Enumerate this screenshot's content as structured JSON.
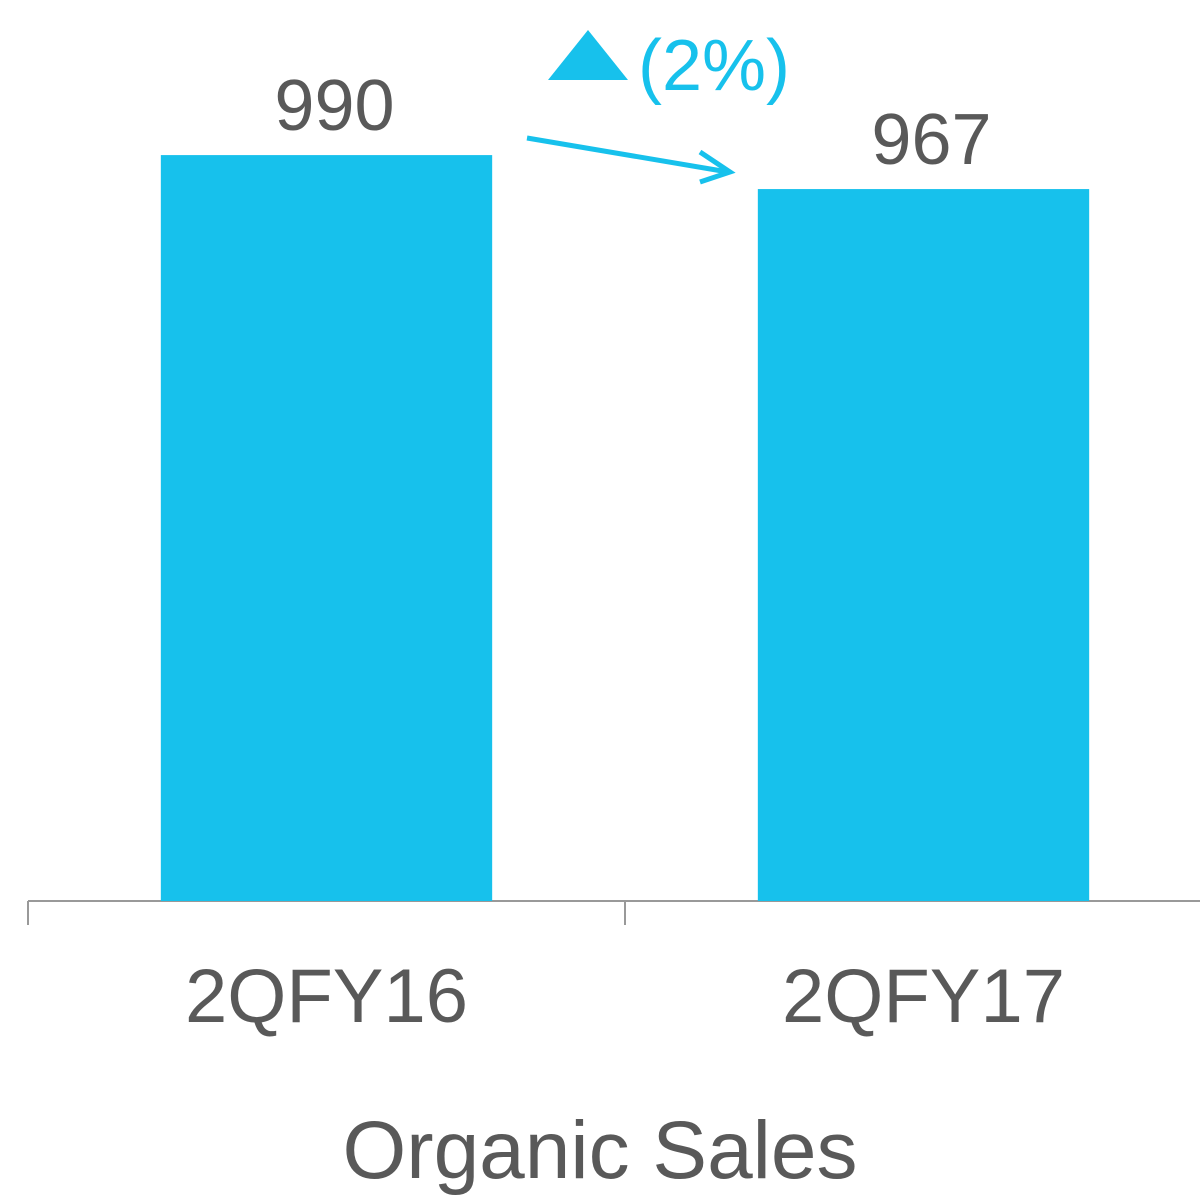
{
  "chart_data": {
    "type": "bar",
    "x_label": "Organic Sales",
    "categories": [
      "2QFY16",
      "2QFY17"
    ],
    "values": [
      990,
      967
    ],
    "color": "#17c1ec",
    "ylim": [
      485,
      1095
    ],
    "annotation": "(2%)"
  }
}
